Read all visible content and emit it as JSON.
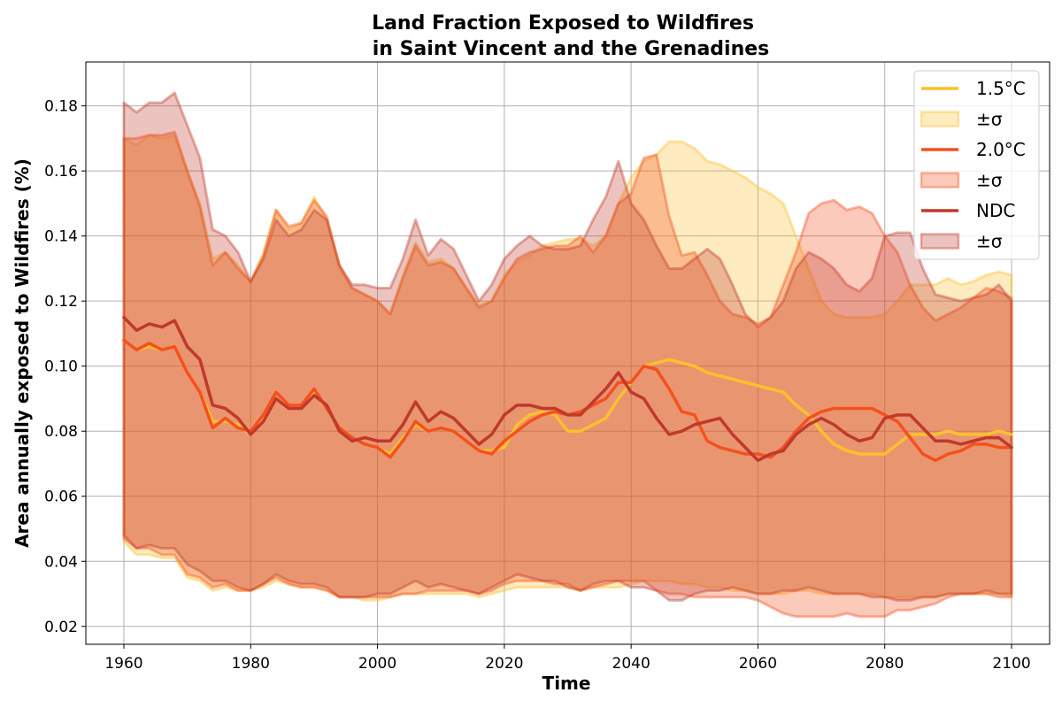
{
  "chart_data": {
    "type": "line",
    "title_line1": "Land Fraction Exposed to Wildfires",
    "title_line2": "in Saint Vincent and the Grenadines",
    "xlabel": "Time",
    "ylabel": "Area annually exposed to Wildfires (%)",
    "xlim": [
      1954,
      2106
    ],
    "ylim": [
      0.0145,
      0.1935
    ],
    "xticks": [
      1960,
      1980,
      2000,
      2020,
      2040,
      2060,
      2080,
      2100
    ],
    "xtick_labels": [
      "1960",
      "1980",
      "2000",
      "2020",
      "2040",
      "2060",
      "2080",
      "2100"
    ],
    "yticks": [
      0.02,
      0.04,
      0.06,
      0.08,
      0.1,
      0.12,
      0.14,
      0.16,
      0.18
    ],
    "ytick_labels": [
      "0.02",
      "0.04",
      "0.06",
      "0.08",
      "0.10",
      "0.12",
      "0.14",
      "0.16",
      "0.18"
    ],
    "grid": true,
    "legend_position": "top-right",
    "legend": [
      {
        "label": "1.5°C",
        "kind": "line",
        "color": "#fbc02d"
      },
      {
        "label": "±σ",
        "kind": "band",
        "color": "#fbc02d"
      },
      {
        "label": "2.0°C",
        "kind": "line",
        "color": "#f4511e"
      },
      {
        "label": "±σ",
        "kind": "band",
        "color": "#f4511e"
      },
      {
        "label": "NDC",
        "kind": "line",
        "color": "#c0392b"
      },
      {
        "label": "±σ",
        "kind": "band",
        "color": "#c0392b"
      }
    ],
    "series": [
      {
        "name": "1.5°C",
        "color": "#fbc02d",
        "band_alpha": 0.3,
        "x": [
          1960,
          1962,
          1964,
          1966,
          1968,
          1970,
          1972,
          1974,
          1976,
          1978,
          1980,
          1982,
          1984,
          1986,
          1988,
          1990,
          1992,
          1994,
          1996,
          1998,
          2000,
          2002,
          2004,
          2006,
          2008,
          2010,
          2012,
          2014,
          2016,
          2018,
          2020,
          2022,
          2024,
          2026,
          2028,
          2030,
          2032,
          2034,
          2036,
          2038,
          2040,
          2042,
          2044,
          2046,
          2048,
          2050,
          2052,
          2054,
          2056,
          2058,
          2060,
          2062,
          2064,
          2066,
          2068,
          2070,
          2072,
          2074,
          2076,
          2078,
          2080,
          2082,
          2084,
          2086,
          2088,
          2090,
          2092,
          2094,
          2096,
          2098,
          2100
        ],
        "mean": [
          0.108,
          0.105,
          0.106,
          0.105,
          0.106,
          0.098,
          0.092,
          0.083,
          0.083,
          0.082,
          0.079,
          0.084,
          0.092,
          0.088,
          0.088,
          0.092,
          0.087,
          0.081,
          0.078,
          0.076,
          0.075,
          0.073,
          0.078,
          0.082,
          0.08,
          0.081,
          0.08,
          0.077,
          0.074,
          0.074,
          0.075,
          0.082,
          0.085,
          0.086,
          0.085,
          0.08,
          0.08,
          0.082,
          0.084,
          0.09,
          0.095,
          0.1,
          0.101,
          0.102,
          0.101,
          0.1,
          0.098,
          0.097,
          0.096,
          0.095,
          0.094,
          0.093,
          0.092,
          0.088,
          0.085,
          0.08,
          0.076,
          0.074,
          0.073,
          0.073,
          0.073,
          0.076,
          0.079,
          0.079,
          0.079,
          0.08,
          0.079,
          0.079,
          0.079,
          0.08,
          0.079
        ],
        "upper": [
          0.17,
          0.168,
          0.171,
          0.17,
          0.171,
          0.16,
          0.15,
          0.133,
          0.135,
          0.131,
          0.126,
          0.135,
          0.148,
          0.142,
          0.144,
          0.152,
          0.145,
          0.13,
          0.124,
          0.122,
          0.12,
          0.116,
          0.128,
          0.138,
          0.132,
          0.133,
          0.13,
          0.124,
          0.119,
          0.12,
          0.128,
          0.132,
          0.134,
          0.137,
          0.138,
          0.139,
          0.139,
          0.137,
          0.14,
          0.15,
          0.158,
          0.163,
          0.165,
          0.169,
          0.169,
          0.167,
          0.163,
          0.162,
          0.16,
          0.158,
          0.155,
          0.153,
          0.15,
          0.14,
          0.13,
          0.12,
          0.116,
          0.115,
          0.115,
          0.115,
          0.116,
          0.12,
          0.125,
          0.125,
          0.125,
          0.127,
          0.125,
          0.126,
          0.128,
          0.129,
          0.128
        ],
        "lower": [
          0.046,
          0.042,
          0.042,
          0.041,
          0.041,
          0.035,
          0.034,
          0.031,
          0.032,
          0.031,
          0.031,
          0.032,
          0.034,
          0.033,
          0.032,
          0.032,
          0.031,
          0.029,
          0.029,
          0.028,
          0.028,
          0.029,
          0.03,
          0.03,
          0.03,
          0.03,
          0.03,
          0.03,
          0.029,
          0.03,
          0.031,
          0.032,
          0.032,
          0.032,
          0.032,
          0.032,
          0.031,
          0.032,
          0.032,
          0.032,
          0.033,
          0.034,
          0.034,
          0.034,
          0.033,
          0.033,
          0.032,
          0.032,
          0.031,
          0.031,
          0.03,
          0.03,
          0.03,
          0.031,
          0.031,
          0.03,
          0.03,
          0.03,
          0.03,
          0.03,
          0.029,
          0.029,
          0.029,
          0.029,
          0.029,
          0.03,
          0.03,
          0.03,
          0.03,
          0.03,
          0.029
        ]
      },
      {
        "name": "2.0°C",
        "color": "#f4511e",
        "band_alpha": 0.3,
        "x": [
          1960,
          1962,
          1964,
          1966,
          1968,
          1970,
          1972,
          1974,
          1976,
          1978,
          1980,
          1982,
          1984,
          1986,
          1988,
          1990,
          1992,
          1994,
          1996,
          1998,
          2000,
          2002,
          2004,
          2006,
          2008,
          2010,
          2012,
          2014,
          2016,
          2018,
          2020,
          2022,
          2024,
          2026,
          2028,
          2030,
          2032,
          2034,
          2036,
          2038,
          2040,
          2042,
          2044,
          2046,
          2048,
          2050,
          2052,
          2054,
          2056,
          2058,
          2060,
          2062,
          2064,
          2066,
          2068,
          2070,
          2072,
          2074,
          2076,
          2078,
          2080,
          2082,
          2084,
          2086,
          2088,
          2090,
          2092,
          2094,
          2096,
          2098,
          2100
        ],
        "mean": [
          0.108,
          0.105,
          0.107,
          0.105,
          0.106,
          0.098,
          0.092,
          0.081,
          0.084,
          0.081,
          0.08,
          0.085,
          0.092,
          0.088,
          0.088,
          0.093,
          0.087,
          0.081,
          0.078,
          0.076,
          0.075,
          0.072,
          0.077,
          0.083,
          0.08,
          0.081,
          0.08,
          0.077,
          0.074,
          0.073,
          0.077,
          0.08,
          0.083,
          0.085,
          0.086,
          0.085,
          0.086,
          0.088,
          0.09,
          0.095,
          0.095,
          0.1,
          0.099,
          0.093,
          0.086,
          0.085,
          0.077,
          0.075,
          0.074,
          0.073,
          0.073,
          0.072,
          0.075,
          0.08,
          0.084,
          0.086,
          0.087,
          0.087,
          0.087,
          0.087,
          0.085,
          0.083,
          0.078,
          0.073,
          0.071,
          0.073,
          0.074,
          0.076,
          0.076,
          0.075,
          0.075
        ],
        "upper": [
          0.17,
          0.17,
          0.171,
          0.171,
          0.172,
          0.16,
          0.149,
          0.131,
          0.135,
          0.13,
          0.126,
          0.134,
          0.148,
          0.143,
          0.144,
          0.151,
          0.146,
          0.131,
          0.124,
          0.122,
          0.12,
          0.116,
          0.127,
          0.137,
          0.131,
          0.132,
          0.13,
          0.124,
          0.118,
          0.12,
          0.127,
          0.133,
          0.135,
          0.136,
          0.137,
          0.137,
          0.14,
          0.135,
          0.14,
          0.15,
          0.153,
          0.164,
          0.165,
          0.146,
          0.134,
          0.135,
          0.128,
          0.12,
          0.116,
          0.115,
          0.113,
          0.115,
          0.125,
          0.135,
          0.147,
          0.15,
          0.151,
          0.148,
          0.149,
          0.147,
          0.14,
          0.135,
          0.125,
          0.118,
          0.114,
          0.116,
          0.118,
          0.121,
          0.124,
          0.123,
          0.121
        ],
        "lower": [
          0.047,
          0.044,
          0.044,
          0.042,
          0.042,
          0.036,
          0.035,
          0.032,
          0.033,
          0.031,
          0.031,
          0.033,
          0.035,
          0.033,
          0.032,
          0.032,
          0.031,
          0.029,
          0.029,
          0.029,
          0.029,
          0.029,
          0.03,
          0.03,
          0.031,
          0.031,
          0.031,
          0.031,
          0.03,
          0.031,
          0.033,
          0.034,
          0.034,
          0.034,
          0.033,
          0.033,
          0.031,
          0.032,
          0.033,
          0.034,
          0.034,
          0.034,
          0.031,
          0.03,
          0.03,
          0.029,
          0.029,
          0.029,
          0.029,
          0.029,
          0.028,
          0.026,
          0.024,
          0.023,
          0.023,
          0.023,
          0.023,
          0.024,
          0.023,
          0.023,
          0.023,
          0.025,
          0.025,
          0.026,
          0.027,
          0.029,
          0.03,
          0.03,
          0.03,
          0.029,
          0.029
        ]
      },
      {
        "name": "NDC",
        "color": "#c0392b",
        "band_alpha": 0.3,
        "x": [
          1960,
          1962,
          1964,
          1966,
          1968,
          1970,
          1972,
          1974,
          1976,
          1978,
          1980,
          1982,
          1984,
          1986,
          1988,
          1990,
          1992,
          1994,
          1996,
          1998,
          2000,
          2002,
          2004,
          2006,
          2008,
          2010,
          2012,
          2014,
          2016,
          2018,
          2020,
          2022,
          2024,
          2026,
          2028,
          2030,
          2032,
          2034,
          2036,
          2038,
          2040,
          2042,
          2044,
          2046,
          2048,
          2050,
          2052,
          2054,
          2056,
          2058,
          2060,
          2062,
          2064,
          2066,
          2068,
          2070,
          2072,
          2074,
          2076,
          2078,
          2080,
          2082,
          2084,
          2086,
          2088,
          2090,
          2092,
          2094,
          2096,
          2098,
          2100
        ],
        "mean": [
          0.115,
          0.111,
          0.113,
          0.112,
          0.114,
          0.106,
          0.102,
          0.088,
          0.087,
          0.084,
          0.079,
          0.083,
          0.09,
          0.087,
          0.087,
          0.091,
          0.088,
          0.08,
          0.077,
          0.078,
          0.077,
          0.077,
          0.082,
          0.089,
          0.083,
          0.086,
          0.084,
          0.08,
          0.076,
          0.079,
          0.085,
          0.088,
          0.088,
          0.087,
          0.087,
          0.085,
          0.085,
          0.089,
          0.093,
          0.098,
          0.092,
          0.09,
          0.084,
          0.079,
          0.08,
          0.082,
          0.083,
          0.084,
          0.079,
          0.075,
          0.071,
          0.073,
          0.074,
          0.079,
          0.082,
          0.084,
          0.082,
          0.079,
          0.077,
          0.078,
          0.084,
          0.085,
          0.085,
          0.081,
          0.077,
          0.077,
          0.076,
          0.077,
          0.078,
          0.078,
          0.075
        ],
        "upper": [
          0.181,
          0.178,
          0.181,
          0.181,
          0.184,
          0.174,
          0.164,
          0.142,
          0.14,
          0.135,
          0.126,
          0.133,
          0.145,
          0.14,
          0.142,
          0.148,
          0.145,
          0.131,
          0.125,
          0.125,
          0.124,
          0.124,
          0.133,
          0.145,
          0.134,
          0.139,
          0.136,
          0.128,
          0.12,
          0.125,
          0.133,
          0.137,
          0.14,
          0.137,
          0.136,
          0.136,
          0.137,
          0.145,
          0.152,
          0.163,
          0.15,
          0.145,
          0.137,
          0.13,
          0.13,
          0.133,
          0.136,
          0.133,
          0.125,
          0.116,
          0.112,
          0.115,
          0.12,
          0.13,
          0.135,
          0.133,
          0.13,
          0.125,
          0.123,
          0.127,
          0.14,
          0.141,
          0.141,
          0.13,
          0.122,
          0.121,
          0.12,
          0.121,
          0.122,
          0.125,
          0.12
        ],
        "lower": [
          0.048,
          0.044,
          0.045,
          0.044,
          0.044,
          0.039,
          0.037,
          0.034,
          0.034,
          0.032,
          0.031,
          0.033,
          0.036,
          0.034,
          0.033,
          0.033,
          0.032,
          0.029,
          0.029,
          0.029,
          0.03,
          0.03,
          0.032,
          0.034,
          0.032,
          0.033,
          0.032,
          0.031,
          0.03,
          0.032,
          0.034,
          0.036,
          0.035,
          0.034,
          0.034,
          0.032,
          0.031,
          0.033,
          0.034,
          0.034,
          0.032,
          0.032,
          0.031,
          0.028,
          0.028,
          0.03,
          0.031,
          0.031,
          0.032,
          0.031,
          0.03,
          0.03,
          0.031,
          0.031,
          0.032,
          0.031,
          0.03,
          0.03,
          0.03,
          0.029,
          0.029,
          0.028,
          0.028,
          0.029,
          0.029,
          0.03,
          0.03,
          0.03,
          0.031,
          0.03,
          0.03
        ]
      }
    ]
  }
}
